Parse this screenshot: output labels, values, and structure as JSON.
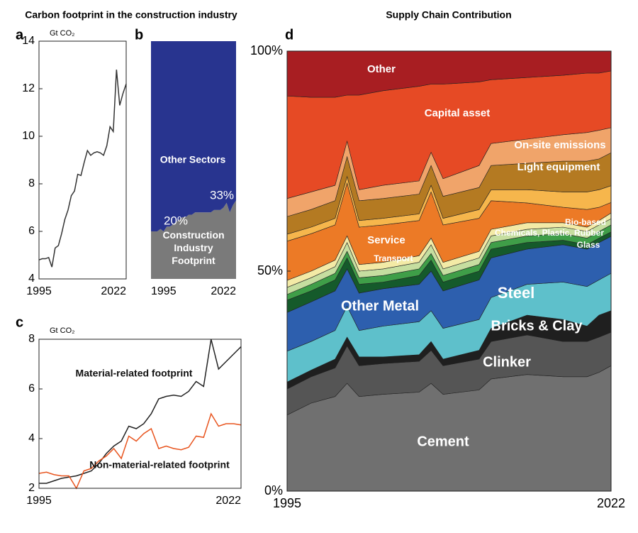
{
  "chart_data": [
    {
      "panel": "a",
      "type": "line",
      "title": "Carbon footprint in the construction industry",
      "ylabel": "Gt CO₂",
      "x": [
        1995,
        1996,
        1997,
        1998,
        1999,
        2000,
        2001,
        2002,
        2003,
        2004,
        2005,
        2006,
        2007,
        2008,
        2009,
        2010,
        2011,
        2012,
        2013,
        2014,
        2015,
        2016,
        2017,
        2018,
        2019,
        2020,
        2021,
        2022
      ],
      "values": [
        4.8,
        4.85,
        4.85,
        4.9,
        4.5,
        5.3,
        5.4,
        5.9,
        6.5,
        6.9,
        7.5,
        7.7,
        8.4,
        8.35,
        8.9,
        9.4,
        9.2,
        9.3,
        9.35,
        9.3,
        9.2,
        9.6,
        10.4,
        10.2,
        12.8,
        11.3,
        11.8,
        12.2
      ],
      "color": "#333333",
      "xlim": [
        1995,
        2022
      ],
      "xticks": [
        1995,
        2022
      ],
      "ylim": [
        4,
        14
      ],
      "yticks": [
        4,
        6,
        8,
        10,
        12,
        14
      ]
    },
    {
      "panel": "b",
      "type": "area",
      "stacked": true,
      "x": [
        1995,
        1996,
        1997,
        1998,
        1999,
        2000,
        2001,
        2002,
        2003,
        2004,
        2005,
        2006,
        2007,
        2008,
        2009,
        2010,
        2011,
        2012,
        2013,
        2014,
        2015,
        2016,
        2017,
        2018,
        2019,
        2020,
        2021,
        2022
      ],
      "series": [
        {
          "name": "Construction Industry Footprint",
          "color": "#7a7a7a",
          "values": [
            20,
            20,
            20,
            21,
            20,
            22,
            22,
            23,
            24,
            25,
            26,
            26,
            27,
            27,
            28,
            28,
            28,
            28,
            28,
            28,
            29,
            29,
            29,
            30,
            32,
            28,
            31,
            33
          ]
        },
        {
          "name": "Other Sectors",
          "color": "#28348f",
          "values": [
            80,
            80,
            80,
            79,
            80,
            78,
            78,
            77,
            76,
            75,
            74,
            74,
            73,
            73,
            72,
            72,
            72,
            72,
            72,
            72,
            71,
            71,
            71,
            70,
            68,
            72,
            69,
            67
          ]
        }
      ],
      "annotations": [
        "20%",
        "33%"
      ],
      "xlim": [
        1995,
        2022
      ],
      "xticks": [
        1995,
        2022
      ],
      "ylim": [
        0,
        100
      ]
    },
    {
      "panel": "c",
      "type": "line",
      "ylabel": "Gt CO₂",
      "x": [
        1995,
        1996,
        1997,
        1998,
        1999,
        2000,
        2001,
        2002,
        2003,
        2004,
        2005,
        2006,
        2007,
        2008,
        2009,
        2010,
        2011,
        2012,
        2013,
        2014,
        2015,
        2016,
        2017,
        2018,
        2019,
        2020,
        2021,
        2022
      ],
      "series": [
        {
          "name": "Material-related footprint",
          "color": "#222222",
          "values": [
            2.2,
            2.2,
            2.3,
            2.4,
            2.45,
            2.5,
            2.6,
            2.7,
            3.0,
            3.4,
            3.7,
            3.9,
            4.5,
            4.4,
            4.6,
            5.0,
            5.6,
            5.7,
            5.75,
            5.7,
            5.9,
            6.3,
            6.1,
            8.0,
            6.8,
            7.1,
            7.4,
            7.7
          ]
        },
        {
          "name": "Non-material-related footprint",
          "color": "#e8541e",
          "values": [
            2.6,
            2.65,
            2.55,
            2.5,
            2.5,
            2.0,
            2.7,
            2.8,
            3.1,
            3.3,
            3.6,
            3.2,
            4.1,
            3.9,
            4.2,
            4.4,
            3.6,
            3.7,
            3.6,
            3.55,
            3.65,
            4.1,
            4.05,
            5.0,
            4.5,
            4.6,
            4.6,
            4.55
          ]
        }
      ],
      "xlim": [
        1995,
        2022
      ],
      "xticks": [
        1995,
        2022
      ],
      "ylim": [
        2,
        8
      ],
      "yticks": [
        2,
        4,
        6,
        8
      ]
    },
    {
      "panel": "d",
      "type": "area",
      "stacked": true,
      "title": "Supply Chain Contribution",
      "x": [
        1995,
        1997,
        1999,
        2000,
        2001,
        2003,
        2006,
        2007,
        2008,
        2011,
        2012,
        2015,
        2018,
        2020,
        2021,
        2022
      ],
      "series": [
        {
          "name": "Cement",
          "color": "#707070",
          "values": [
            17.3,
            20,
            21.5,
            24.5,
            21.5,
            22,
            22.5,
            24.5,
            22,
            23,
            25.5,
            26.5,
            26,
            26,
            27,
            28.5
          ]
        },
        {
          "name": "Clinker",
          "color": "#555555",
          "values": [
            5.9,
            6,
            6.5,
            8.5,
            7,
            7,
            7,
            7.5,
            6.5,
            7,
            8.5,
            9,
            8,
            8,
            8,
            7.6
          ]
        },
        {
          "name": "Bricks & Clay",
          "color": "#1f1f1f",
          "values": [
            1.6,
            1.5,
            2,
            2,
            2,
            1.5,
            1.5,
            2,
            1.5,
            2,
            3,
            4.5,
            5,
            3.5,
            5,
            4.9
          ]
        },
        {
          "name": "Steel",
          "color": "#5ec0cb",
          "values": [
            7,
            6.5,
            6.5,
            7,
            6,
            7,
            7.5,
            7,
            7,
            7,
            7,
            7,
            8.5,
            9,
            8,
            8.5
          ]
        },
        {
          "name": "Other Metal",
          "color": "#2d5fae",
          "values": [
            8.8,
            9,
            9,
            8.5,
            8.5,
            8.5,
            8.5,
            9,
            8.5,
            9,
            9,
            8,
            8.5,
            8.5,
            8.5,
            8.4
          ]
        },
        {
          "name": "Glass",
          "color": "#155a2b",
          "values": [
            2.8,
            2.5,
            2.5,
            2.5,
            2,
            1.5,
            2,
            2.5,
            2,
            2,
            2,
            1.5,
            1,
            1,
            1,
            1
          ]
        },
        {
          "name": "Chemicals, Plastic, Rubber",
          "color": "#3f9e48",
          "values": [
            1.3,
            1.5,
            1.5,
            1.5,
            1.5,
            1.5,
            1.5,
            1.5,
            1.5,
            1.5,
            1.5,
            1.5,
            1.5,
            1.5,
            1.5,
            1.6
          ]
        },
        {
          "name": "Bio-based",
          "color": "#c6dea0",
          "values": [
            1.6,
            1.5,
            1.5,
            2,
            1.5,
            1.5,
            1.5,
            2,
            1.5,
            1.5,
            1.5,
            1.5,
            1.5,
            1.5,
            1.5,
            1.4
          ]
        },
        {
          "name": "Transport",
          "color": "#f3eaa6",
          "values": [
            1.6,
            1.5,
            1.5,
            1.5,
            1.5,
            1.5,
            1.5,
            1.5,
            1.5,
            1.5,
            1.5,
            1.5,
            1,
            1,
            1,
            1.3
          ]
        },
        {
          "name": "Service",
          "color": "#ec7a26",
          "values": [
            8.9,
            8.5,
            8,
            12,
            8.5,
            8.5,
            8,
            10.5,
            8.5,
            7.5,
            6.5,
            4.5,
            3.5,
            4,
            3,
            2.4
          ]
        },
        {
          "name": null,
          "color": "#f6b64c",
          "values": [
            1.6,
            1.5,
            1.5,
            1.5,
            1.5,
            1.5,
            1.5,
            1.5,
            1.5,
            2,
            2.5,
            3,
            3.5,
            4,
            4,
            3.8
          ]
        },
        {
          "name": "Light equipment",
          "color": "#b47a22",
          "values": [
            4,
            4,
            4,
            4.5,
            4.5,
            4.5,
            4.5,
            4.5,
            5,
            5,
            5.5,
            6,
            7,
            7,
            7,
            7.5
          ]
        },
        {
          "name": "On-site emissions",
          "color": "#f0a46a",
          "values": [
            4.1,
            4,
            3.5,
            3.5,
            2.5,
            3,
            3,
            3,
            4,
            5,
            5,
            5.5,
            6,
            6.5,
            6.5,
            5.7
          ]
        },
        {
          "name": "Capital asset",
          "color": "#e64a25",
          "values": [
            23.3,
            21.5,
            20,
            10.5,
            21.5,
            21.5,
            21.5,
            15.5,
            21.5,
            19,
            14.5,
            14,
            13.5,
            13.5,
            13,
            12.9
          ]
        },
        {
          "name": "Other",
          "color": "#a81e22",
          "values": [
            10.2,
            10.5,
            10.5,
            10,
            10,
            9,
            8,
            7.5,
            7.5,
            7,
            6.5,
            6,
            5.5,
            5,
            5,
            4.5
          ]
        }
      ],
      "xlim": [
        1995,
        2022
      ],
      "xticks": [
        1995,
        2022
      ],
      "ylim": [
        0,
        100
      ],
      "yticks": [
        {
          "value": 0,
          "label": "0%"
        },
        {
          "value": 50,
          "label": "50%"
        },
        {
          "value": 100,
          "label": "100%"
        }
      ]
    }
  ]
}
